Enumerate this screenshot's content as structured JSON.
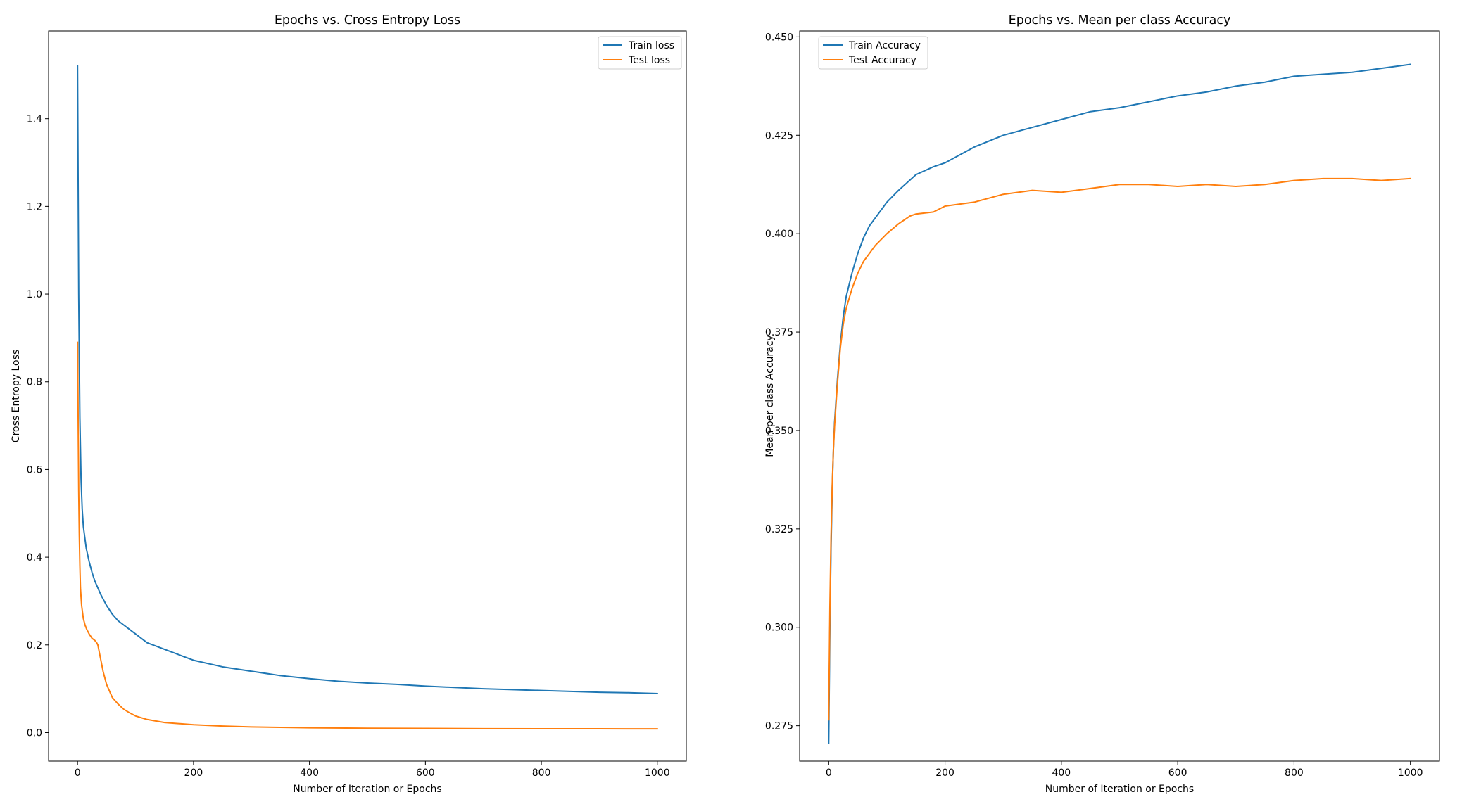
{
  "chart_data": [
    {
      "type": "line",
      "title": "Epochs vs. Cross Entropy Loss",
      "xlabel": "Number of Iteration or Epochs",
      "ylabel": "Cross Entropy Loss",
      "xlim": [
        -50,
        1050
      ],
      "ylim": [
        -0.065,
        1.6
      ],
      "xticks": [
        0,
        200,
        400,
        600,
        800,
        1000
      ],
      "xtick_labels": [
        "0",
        "200",
        "400",
        "600",
        "800",
        "1000"
      ],
      "yticks": [
        0.0,
        0.2,
        0.4,
        0.6,
        0.8,
        1.0,
        1.2,
        1.4
      ],
      "ytick_labels": [
        "0.0",
        "0.2",
        "0.4",
        "0.6",
        "0.8",
        "1.0",
        "1.2",
        "1.4"
      ],
      "legend": "upper right",
      "grid": false,
      "series": [
        {
          "name": "Train loss",
          "color": "#1f77b4",
          "x": [
            0,
            2,
            4,
            6,
            8,
            10,
            15,
            20,
            25,
            30,
            40,
            50,
            60,
            70,
            80,
            100,
            120,
            150,
            180,
            200,
            250,
            300,
            350,
            400,
            450,
            500,
            550,
            600,
            650,
            700,
            750,
            800,
            850,
            900,
            950,
            1000
          ],
          "y": [
            1.52,
            1.0,
            0.72,
            0.58,
            0.51,
            0.47,
            0.42,
            0.39,
            0.365,
            0.345,
            0.315,
            0.29,
            0.27,
            0.255,
            0.245,
            0.225,
            0.205,
            0.19,
            0.175,
            0.165,
            0.15,
            0.14,
            0.13,
            0.123,
            0.117,
            0.113,
            0.11,
            0.106,
            0.103,
            0.1,
            0.098,
            0.096,
            0.094,
            0.092,
            0.091,
            0.089
          ]
        },
        {
          "name": "Test loss",
          "color": "#ff7f0e",
          "x": [
            0,
            1,
            2,
            3,
            4,
            5,
            7,
            10,
            13,
            16,
            20,
            25,
            30,
            33,
            35,
            38,
            41,
            44,
            47,
            50,
            55,
            60,
            70,
            80,
            90,
            100,
            120,
            150,
            200,
            250,
            300,
            400,
            500,
            600,
            700,
            800,
            900,
            1000
          ],
          "y": [
            0.89,
            0.72,
            0.55,
            0.45,
            0.38,
            0.33,
            0.29,
            0.26,
            0.245,
            0.235,
            0.225,
            0.215,
            0.21,
            0.205,
            0.2,
            0.18,
            0.16,
            0.14,
            0.125,
            0.11,
            0.095,
            0.08,
            0.065,
            0.053,
            0.045,
            0.038,
            0.03,
            0.023,
            0.018,
            0.015,
            0.013,
            0.011,
            0.01,
            0.0095,
            0.009,
            0.0088,
            0.0087,
            0.0085
          ]
        }
      ]
    },
    {
      "type": "line",
      "title": "Epochs vs. Mean per class Accuracy",
      "xlabel": "Number of Iteration or Epochs",
      "ylabel": "Mean per class Accuracy",
      "xlim": [
        -50,
        1050
      ],
      "ylim": [
        0.266,
        0.4515
      ],
      "xticks": [
        0,
        200,
        400,
        600,
        800,
        1000
      ],
      "xtick_labels": [
        "0",
        "200",
        "400",
        "600",
        "800",
        "1000"
      ],
      "yticks": [
        0.275,
        0.3,
        0.325,
        0.35,
        0.375,
        0.4,
        0.425,
        0.45
      ],
      "ytick_labels": [
        "0.275",
        "0.300",
        "0.325",
        "0.350",
        "0.375",
        "0.400",
        "0.425",
        "0.450"
      ],
      "legend": "upper left",
      "grid": false,
      "series": [
        {
          "name": "Train Accuracy",
          "color": "#1f77b4",
          "x": [
            0,
            2,
            4,
            6,
            8,
            10,
            15,
            20,
            25,
            30,
            40,
            50,
            60,
            70,
            80,
            100,
            120,
            150,
            180,
            200,
            250,
            300,
            350,
            400,
            450,
            500,
            550,
            600,
            650,
            700,
            750,
            800,
            850,
            900,
            950,
            1000
          ],
          "y": [
            0.2705,
            0.3,
            0.32,
            0.335,
            0.345,
            0.352,
            0.363,
            0.372,
            0.379,
            0.384,
            0.39,
            0.395,
            0.399,
            0.402,
            0.404,
            0.408,
            0.411,
            0.415,
            0.417,
            0.418,
            0.422,
            0.425,
            0.427,
            0.429,
            0.431,
            0.432,
            0.4335,
            0.435,
            0.436,
            0.4375,
            0.4385,
            0.44,
            0.4405,
            0.441,
            0.442,
            0.443
          ]
        },
        {
          "name": "Test Accuracy",
          "color": "#ff7f0e",
          "x": [
            0,
            2,
            4,
            6,
            8,
            10,
            15,
            20,
            25,
            30,
            40,
            50,
            60,
            70,
            80,
            100,
            120,
            140,
            150,
            180,
            200,
            250,
            300,
            350,
            400,
            450,
            500,
            550,
            600,
            650,
            700,
            750,
            800,
            850,
            900,
            950,
            1000
          ],
          "y": [
            0.2765,
            0.305,
            0.323,
            0.336,
            0.345,
            0.351,
            0.362,
            0.371,
            0.377,
            0.381,
            0.386,
            0.39,
            0.393,
            0.395,
            0.397,
            0.4,
            0.4025,
            0.4045,
            0.405,
            0.4055,
            0.407,
            0.408,
            0.41,
            0.411,
            0.4105,
            0.4115,
            0.4125,
            0.4125,
            0.412,
            0.4125,
            0.412,
            0.4125,
            0.4135,
            0.414,
            0.414,
            0.4135,
            0.414
          ]
        }
      ]
    }
  ]
}
